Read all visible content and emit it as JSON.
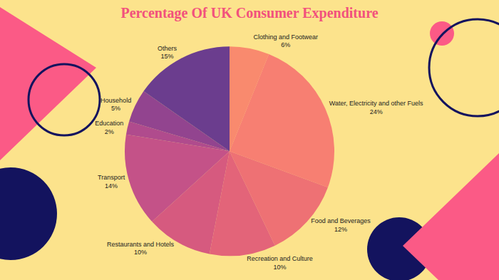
{
  "chart_data": {
    "type": "pie",
    "title": "Percentage Of UK Consumer Expenditure",
    "categories": [
      "Clothing and Footwear",
      "Water, Electricity and other Fuels",
      "Food and Beverages",
      "Recreation and Culture",
      "Restaurants and Hotels",
      "Transport",
      "Education",
      "Household",
      "Others"
    ],
    "values": [
      6,
      24,
      12,
      10,
      10,
      14,
      2,
      5,
      15
    ],
    "value_labels": [
      "6%",
      "24%",
      "12%",
      "10%",
      "10%",
      "14%",
      "2%",
      "5%",
      "15%"
    ],
    "colors": [
      "#f98a6e",
      "#f77f72",
      "#ee7174",
      "#e36479",
      "#d65a7f",
      "#c45288",
      "#b04b8d",
      "#92448f",
      "#6b3d8e"
    ],
    "data_labels": true
  }
}
